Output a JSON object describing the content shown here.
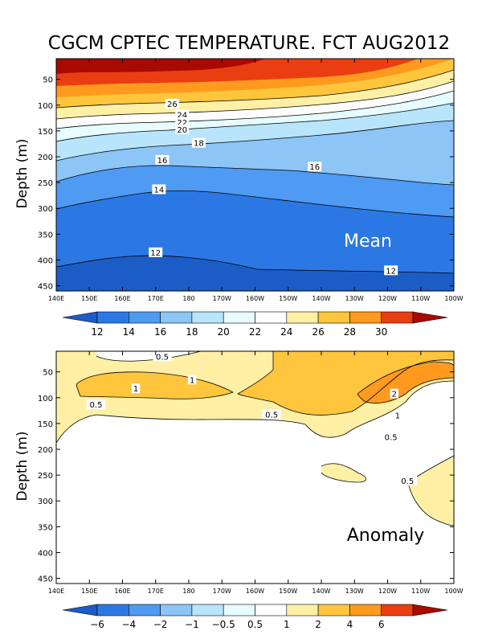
{
  "title": "CGCM CPTEC TEMPERATURE. FCT AUG2012",
  "chart_data": [
    {
      "type": "contour",
      "name": "mean",
      "annotation": "Mean",
      "ylabel": "Depth (m)",
      "xlabel": "",
      "xticks": [
        "140E",
        "150E",
        "160E",
        "170E",
        "180",
        "170W",
        "160W",
        "150W",
        "140W",
        "130W",
        "120W",
        "110W",
        "100W"
      ],
      "yticks": [
        50,
        100,
        150,
        200,
        250,
        300,
        350,
        400,
        450
      ],
      "ylim": [
        10,
        460
      ],
      "levels": [
        12,
        14,
        16,
        18,
        20,
        22,
        24,
        26,
        28,
        30
      ],
      "level_colors": [
        "#1c5cc7",
        "#2b78e4",
        "#4f9af2",
        "#8cc5f6",
        "#b8e5fb",
        "#e6fcff",
        "#fffdfd",
        "#fff0a6",
        "#ffc53d",
        "#ff9a1f",
        "#ea3d12",
        "#a80a00"
      ],
      "contour_labels": [
        {
          "text": "26",
          "lon": 175,
          "depth": 97
        },
        {
          "text": "24",
          "lon": 178,
          "depth": 118
        },
        {
          "text": "22",
          "lon": 178,
          "depth": 133
        },
        {
          "text": "20",
          "lon": 178,
          "depth": 147
        },
        {
          "text": "18",
          "lon": 183,
          "depth": 173
        },
        {
          "text": "16",
          "lon": 172,
          "depth": 206
        },
        {
          "text": "16",
          "lon": 218,
          "depth": 219
        },
        {
          "text": "14",
          "lon": 171,
          "depth": 263
        },
        {
          "text": "12",
          "lon": 170,
          "depth": 385
        },
        {
          "text": "12",
          "lon": 241,
          "depth": 420
        }
      ]
    },
    {
      "type": "contour",
      "name": "anomaly",
      "annotation": "Anomaly",
      "ylabel": "Depth (m)",
      "xlabel": "",
      "xticks": [
        "140E",
        "150E",
        "160E",
        "170E",
        "180",
        "170W",
        "160W",
        "150W",
        "140W",
        "130W",
        "120W",
        "110W",
        "100W"
      ],
      "yticks": [
        50,
        100,
        150,
        200,
        250,
        300,
        350,
        400,
        450
      ],
      "ylim": [
        10,
        460
      ],
      "levels": [
        -6,
        -4,
        -2,
        -1,
        -0.5,
        0.5,
        1,
        2,
        4,
        6
      ],
      "level_colors": [
        "#1c5cc7",
        "#2b78e4",
        "#4f9af2",
        "#8cc5f6",
        "#b8e5fb",
        "#e6fcff",
        "#fffdfd",
        "#fff0a6",
        "#ffc53d",
        "#ff9a1f",
        "#ea3d12",
        "#a80a00"
      ],
      "contour_labels": [
        {
          "text": "0.5",
          "lon": 172,
          "depth": 20
        },
        {
          "text": "1",
          "lon": 164,
          "depth": 82
        },
        {
          "text": "1",
          "lon": 181,
          "depth": 65
        },
        {
          "text": "0.5",
          "lon": 152,
          "depth": 113
        },
        {
          "text": "0.5",
          "lon": 205,
          "depth": 132
        },
        {
          "text": "1",
          "lon": 243,
          "depth": 134
        },
        {
          "text": "2",
          "lon": 242,
          "depth": 92
        },
        {
          "text": "0.5",
          "lon": 241,
          "depth": 176
        },
        {
          "text": "0.5",
          "lon": 246,
          "depth": 261
        }
      ]
    }
  ]
}
